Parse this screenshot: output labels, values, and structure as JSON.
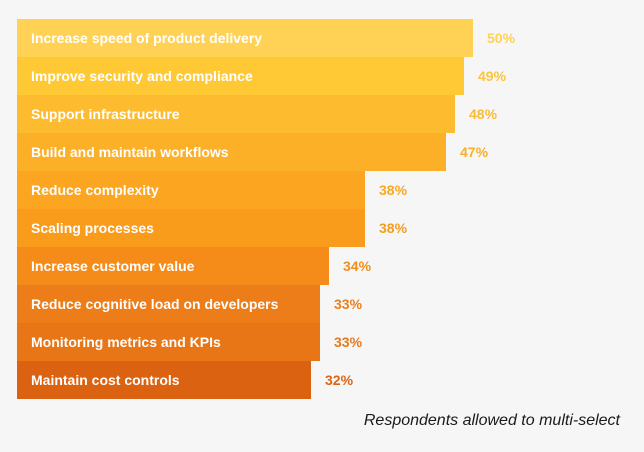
{
  "chart_data": {
    "type": "bar",
    "orientation": "horizontal",
    "title": "",
    "xlabel": "",
    "ylabel": "",
    "categories": [
      "Increase speed of product delivery",
      "Improve security and compliance",
      "Support infrastructure",
      "Build and maintain workflows",
      "Reduce complexity",
      "Scaling processes",
      "Increase customer value",
      "Reduce cognitive load on developers",
      "Monitoring metrics and KPIs",
      "Maintain cost controls"
    ],
    "values": [
      50,
      49,
      48,
      47,
      38,
      38,
      34,
      33,
      33,
      32
    ],
    "value_labels": [
      "50%",
      "49%",
      "48%",
      "47%",
      "38%",
      "38%",
      "34%",
      "33%",
      "33%",
      "32%"
    ],
    "unit": "%",
    "colors": [
      "#ffd155",
      "#ffc835",
      "#fdbb30",
      "#fcb028",
      "#fca520",
      "#f99b1b",
      "#f58c1a",
      "#ec7d18",
      "#e87616",
      "#db6210"
    ],
    "label_colors": [
      "#ffd155",
      "#fcc53a",
      "#f9bc35",
      "#f8b02a",
      "#f9a824",
      "#f49e1f",
      "#f08e1f",
      "#ec7f1c",
      "#e8781a",
      "#dc6414"
    ],
    "note": "Respondents allowed to multi-select",
    "grid": false,
    "legend": "none"
  }
}
